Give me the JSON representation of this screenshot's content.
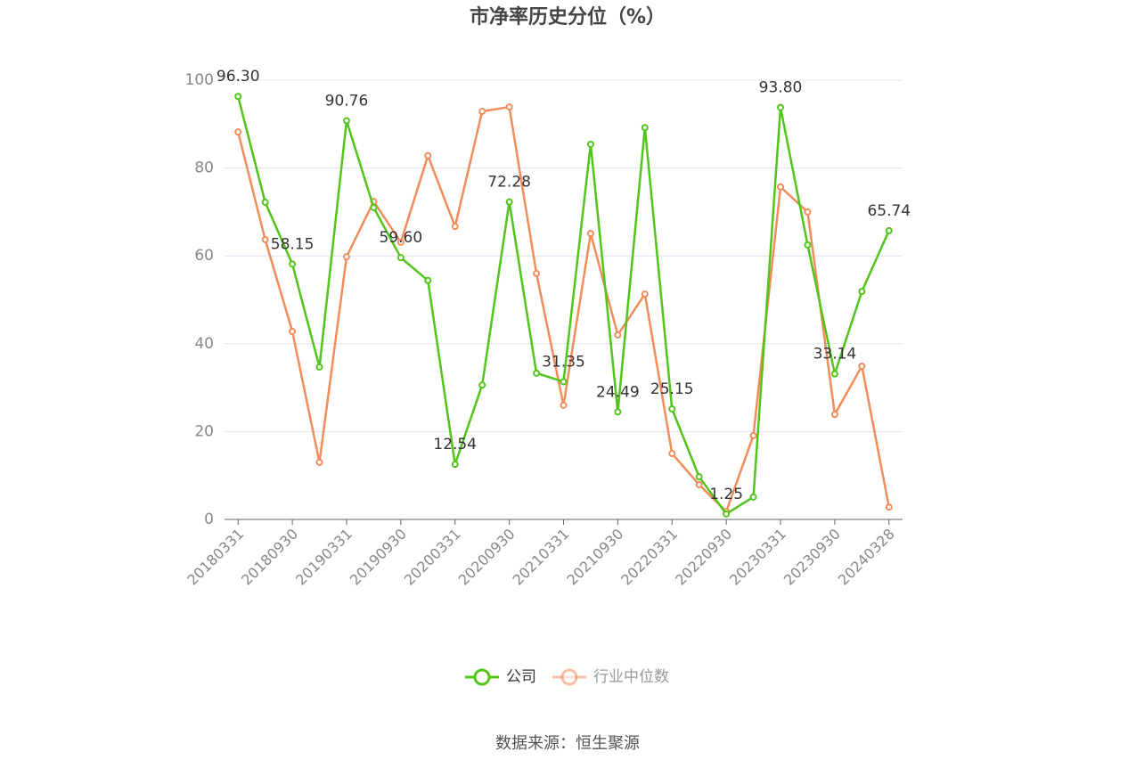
{
  "chart_data": {
    "type": "line",
    "title": "市净率历史分位（%）",
    "source": "数据来源：恒生聚源",
    "categories": [
      "20180331",
      null,
      "20180930",
      null,
      "20190331",
      null,
      "20190930",
      null,
      "20200331",
      null,
      "20200930",
      null,
      "20210331",
      null,
      "20210930",
      null,
      "20220331",
      null,
      "20220930",
      null,
      "20230331",
      null,
      "20230930",
      null,
      "20240328"
    ],
    "series": [
      {
        "name": "公司",
        "color": "#52c41a",
        "values": [
          96.3,
          72.2,
          58.15,
          34.7,
          90.76,
          71.0,
          59.6,
          54.4,
          12.54,
          30.6,
          72.28,
          33.3,
          31.35,
          85.4,
          24.49,
          89.2,
          25.15,
          9.7,
          1.25,
          5.1,
          93.8,
          62.5,
          33.14,
          51.9,
          65.74
        ],
        "value_labels": [
          "96.30",
          null,
          "58.15",
          null,
          "90.76",
          null,
          "59.60",
          null,
          "12.54",
          null,
          "72.28",
          null,
          "31.35",
          null,
          "24.49",
          null,
          "25.15",
          null,
          "1.25",
          null,
          "93.80",
          null,
          "33.14",
          null,
          "65.74"
        ]
      },
      {
        "name": "行业中位数",
        "color": "#f28c5b",
        "values": [
          88.2,
          63.7,
          42.8,
          13.0,
          59.8,
          72.4,
          63.1,
          82.8,
          66.7,
          92.9,
          93.9,
          56.0,
          26.0,
          65.1,
          42.0,
          51.3,
          15.0,
          7.9,
          1.8,
          19.1,
          75.7,
          70.0,
          23.9,
          34.9,
          2.8
        ]
      }
    ],
    "ylim": [
      0,
      100
    ],
    "yticks": [
      0,
      20,
      40,
      60,
      80,
      100
    ],
    "grid": true
  }
}
